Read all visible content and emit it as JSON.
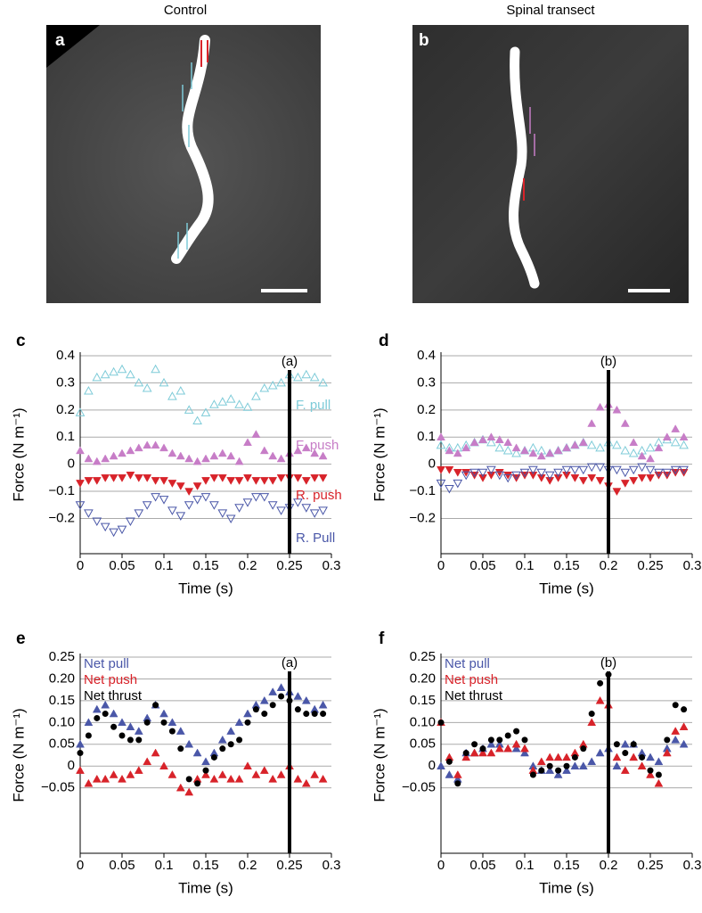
{
  "images": [
    {
      "title": "Control",
      "label": "a"
    },
    {
      "title": "Spinal transect",
      "label": "b"
    }
  ],
  "chart_data": [
    {
      "type": "scatter",
      "label": "c",
      "xlabel": "Time (s)",
      "ylabel": "Force (N m⁻¹)",
      "xlim": [
        0,
        0.3
      ],
      "ylim": [
        -0.33,
        0.4
      ],
      "xticks": [
        0,
        0.05,
        0.1,
        0.15,
        0.2,
        0.25,
        0.3
      ],
      "yticks": [
        0.4,
        0.3,
        0.2,
        0.1,
        0,
        {
          "value": -0.1,
          "label": "−0.1"
        },
        {
          "value": -0.2,
          "label": "−0.2"
        }
      ],
      "grid": true,
      "marker_line": {
        "x": 0.25,
        "label": "(a)"
      },
      "x": [
        0,
        0.01,
        0.02,
        0.03,
        0.04,
        0.05,
        0.06,
        0.07,
        0.08,
        0.09,
        0.1,
        0.11,
        0.12,
        0.13,
        0.14,
        0.15,
        0.16,
        0.17,
        0.18,
        0.19,
        0.2,
        0.21,
        0.22,
        0.23,
        0.24,
        0.25,
        0.26,
        0.27,
        0.28,
        0.29
      ],
      "series": [
        {
          "name": "F. pull",
          "color": "#7ecbd8",
          "marker": "triangle-open",
          "values": [
            0.19,
            0.27,
            0.32,
            0.33,
            0.34,
            0.35,
            0.33,
            0.3,
            0.28,
            0.35,
            0.3,
            0.25,
            0.27,
            0.2,
            0.16,
            0.19,
            0.22,
            0.23,
            0.24,
            0.22,
            0.21,
            0.25,
            0.28,
            0.29,
            0.3,
            0.33,
            0.32,
            0.33,
            0.32,
            0.3
          ]
        },
        {
          "name": "F. push",
          "color": "#c77dc7",
          "marker": "triangle",
          "values": [
            0.05,
            0.02,
            0.01,
            0.02,
            0.03,
            0.04,
            0.05,
            0.06,
            0.07,
            0.07,
            0.06,
            0.04,
            0.03,
            0.02,
            0.01,
            0.02,
            0.03,
            0.04,
            0.03,
            0.01,
            0.08,
            0.11,
            0.05,
            0.03,
            0.02,
            0.04,
            0.05,
            0.06,
            0.04,
            0.03
          ]
        },
        {
          "name": "R. push",
          "color": "#d8232a",
          "marker": "triangle-down",
          "values": [
            -0.07,
            -0.06,
            -0.06,
            -0.05,
            -0.05,
            -0.05,
            -0.04,
            -0.05,
            -0.05,
            -0.06,
            -0.06,
            -0.07,
            -0.08,
            -0.1,
            -0.08,
            -0.06,
            -0.05,
            -0.05,
            -0.06,
            -0.06,
            -0.05,
            -0.06,
            -0.06,
            -0.06,
            -0.05,
            -0.05,
            -0.05,
            -0.06,
            -0.05,
            -0.05
          ]
        },
        {
          "name": "R. Pull",
          "color": "#4a57a8",
          "marker": "triangle-down-open",
          "values": [
            -0.15,
            -0.18,
            -0.21,
            -0.23,
            -0.25,
            -0.24,
            -0.21,
            -0.18,
            -0.15,
            -0.12,
            -0.13,
            -0.17,
            -0.19,
            -0.15,
            -0.13,
            -0.12,
            -0.15,
            -0.18,
            -0.2,
            -0.16,
            -0.14,
            -0.12,
            -0.12,
            -0.15,
            -0.17,
            -0.16,
            -0.14,
            -0.16,
            -0.18,
            -0.17
          ]
        }
      ]
    },
    {
      "type": "scatter",
      "label": "d",
      "xlabel": "Time (s)",
      "ylabel": "Force (N m⁻¹)",
      "xlim": [
        0,
        0.3
      ],
      "ylim": [
        -0.33,
        0.4
      ],
      "xticks": [
        0,
        0.05,
        0.1,
        0.15,
        0.2,
        0.25,
        0.3
      ],
      "yticks": [
        0.4,
        0.3,
        0.2,
        0.1,
        0,
        {
          "value": -0.1,
          "label": "−0.1"
        },
        {
          "value": -0.2,
          "label": "−0.2"
        }
      ],
      "grid": true,
      "marker_line": {
        "x": 0.2,
        "label": "(b)"
      },
      "x": [
        0,
        0.01,
        0.02,
        0.03,
        0.04,
        0.05,
        0.06,
        0.07,
        0.08,
        0.09,
        0.1,
        0.11,
        0.12,
        0.13,
        0.14,
        0.15,
        0.16,
        0.17,
        0.18,
        0.19,
        0.2,
        0.21,
        0.22,
        0.23,
        0.24,
        0.25,
        0.26,
        0.27,
        0.28,
        0.29
      ],
      "series": [
        {
          "color": "#7ecbd8",
          "marker": "triangle-open",
          "values": [
            0.07,
            0.06,
            0.06,
            0.07,
            0.08,
            0.09,
            0.08,
            0.06,
            0.05,
            0.04,
            0.05,
            0.06,
            0.05,
            0.04,
            0.05,
            0.06,
            0.07,
            0.08,
            0.07,
            0.06,
            0.08,
            0.07,
            0.05,
            0.04,
            0.05,
            0.06,
            0.08,
            0.09,
            0.08,
            0.07
          ]
        },
        {
          "color": "#c77dc7",
          "marker": "triangle",
          "values": [
            0.1,
            0.05,
            0.04,
            0.06,
            0.08,
            0.09,
            0.1,
            0.09,
            0.08,
            0.06,
            0.05,
            0.04,
            0.03,
            0.04,
            0.05,
            0.06,
            0.07,
            0.08,
            0.15,
            0.21,
            0.22,
            0.2,
            0.15,
            0.08,
            0.03,
            0.02,
            0.06,
            0.1,
            0.13,
            0.1
          ]
        },
        {
          "color": "#d8232a",
          "marker": "triangle-down",
          "values": [
            -0.02,
            -0.02,
            -0.03,
            -0.03,
            -0.04,
            -0.05,
            -0.04,
            -0.03,
            -0.04,
            -0.05,
            -0.04,
            -0.04,
            -0.05,
            -0.06,
            -0.05,
            -0.04,
            -0.05,
            -0.06,
            -0.05,
            -0.06,
            -0.08,
            -0.1,
            -0.07,
            -0.06,
            -0.05,
            -0.05,
            -0.04,
            -0.04,
            -0.03,
            -0.03
          ]
        },
        {
          "color": "#4a57a8",
          "marker": "triangle-down-open",
          "values": [
            -0.07,
            -0.09,
            -0.07,
            -0.04,
            -0.03,
            -0.03,
            -0.02,
            -0.04,
            -0.05,
            -0.04,
            -0.03,
            -0.02,
            -0.03,
            -0.04,
            -0.03,
            -0.02,
            -0.02,
            -0.02,
            -0.01,
            -0.01,
            -0.02,
            -0.02,
            -0.03,
            -0.02,
            -0.01,
            -0.02,
            -0.03,
            -0.03,
            -0.02,
            -0.02
          ]
        }
      ]
    },
    {
      "type": "scatter",
      "label": "e",
      "xlabel": "Time (s)",
      "ylabel": "Force (N m⁻¹)",
      "xlim": [
        0,
        0.3
      ],
      "ylim": [
        -0.2,
        0.25
      ],
      "xticks": [
        0,
        0.05,
        0.1,
        0.15,
        0.2,
        0.25,
        0.3
      ],
      "yticks": [
        0.25,
        {
          "value": 0.2,
          "label": "0.20"
        },
        0.15,
        {
          "value": 0.1,
          "label": "0.10"
        },
        0.05,
        0,
        {
          "value": -0.05,
          "label": "−0.05"
        }
      ],
      "grid": true,
      "marker_line": {
        "x": 0.25,
        "label": "(a)"
      },
      "legend": "upper left",
      "x": [
        0,
        0.01,
        0.02,
        0.03,
        0.04,
        0.05,
        0.06,
        0.07,
        0.08,
        0.09,
        0.1,
        0.11,
        0.12,
        0.13,
        0.14,
        0.15,
        0.16,
        0.17,
        0.18,
        0.19,
        0.2,
        0.21,
        0.22,
        0.23,
        0.24,
        0.25,
        0.26,
        0.27,
        0.28,
        0.29
      ],
      "series": [
        {
          "name": "Net pull",
          "color": "#4a57a8",
          "marker": "triangle",
          "values": [
            0.05,
            0.1,
            0.13,
            0.14,
            0.12,
            0.1,
            0.09,
            0.08,
            0.11,
            0.14,
            0.12,
            0.1,
            0.08,
            0.05,
            0.03,
            0.01,
            0.03,
            0.06,
            0.08,
            0.1,
            0.12,
            0.14,
            0.15,
            0.17,
            0.18,
            0.17,
            0.16,
            0.15,
            0.13,
            0.14
          ]
        },
        {
          "name": "Net push",
          "color": "#d8232a",
          "marker": "triangle",
          "values": [
            -0.01,
            -0.04,
            -0.03,
            -0.03,
            -0.02,
            -0.03,
            -0.02,
            -0.01,
            0.01,
            0.03,
            0.0,
            -0.02,
            -0.05,
            -0.06,
            -0.03,
            -0.02,
            -0.03,
            -0.02,
            -0.03,
            -0.03,
            0.0,
            -0.02,
            -0.01,
            -0.03,
            -0.02,
            0.0,
            -0.03,
            -0.04,
            -0.02,
            -0.03
          ]
        },
        {
          "name": "Net thrust",
          "color": "#000000",
          "marker": "circle",
          "values": [
            0.03,
            0.07,
            0.11,
            0.12,
            0.09,
            0.07,
            0.06,
            0.06,
            0.1,
            0.14,
            0.1,
            0.08,
            0.04,
            -0.03,
            -0.04,
            -0.01,
            0.02,
            0.04,
            0.05,
            0.06,
            0.1,
            0.13,
            0.12,
            0.14,
            0.16,
            0.15,
            0.13,
            0.12,
            0.12,
            0.12
          ]
        }
      ]
    },
    {
      "type": "scatter",
      "label": "f",
      "xlabel": "Time (s)",
      "ylabel": "Force (N m⁻¹)",
      "xlim": [
        0,
        0.3
      ],
      "ylim": [
        -0.2,
        0.25
      ],
      "xticks": [
        0,
        0.05,
        0.1,
        0.15,
        0.2,
        0.25,
        0.3
      ],
      "yticks": [
        0.25,
        {
          "value": 0.2,
          "label": "0.20"
        },
        0.15,
        {
          "value": 0.1,
          "label": "0.10"
        },
        0.05,
        0,
        {
          "value": -0.05,
          "label": "−0.05"
        }
      ],
      "grid": true,
      "marker_line": {
        "x": 0.2,
        "label": "(b)"
      },
      "legend": "upper left",
      "x": [
        0,
        0.01,
        0.02,
        0.03,
        0.04,
        0.05,
        0.06,
        0.07,
        0.08,
        0.09,
        0.1,
        0.11,
        0.12,
        0.13,
        0.14,
        0.15,
        0.16,
        0.17,
        0.18,
        0.19,
        0.2,
        0.21,
        0.22,
        0.23,
        0.24,
        0.25,
        0.26,
        0.27,
        0.28,
        0.29
      ],
      "series": [
        {
          "name": "Net pull",
          "color": "#4a57a8",
          "marker": "triangle",
          "values": [
            0.0,
            -0.02,
            -0.03,
            0.03,
            0.03,
            0.04,
            0.05,
            0.05,
            0.04,
            0.04,
            0.03,
            0.0,
            -0.01,
            -0.01,
            -0.02,
            -0.01,
            0.0,
            0.0,
            0.01,
            0.03,
            0.04,
            0.0,
            0.05,
            0.05,
            0.03,
            0.02,
            0.01,
            0.04,
            0.06,
            0.05
          ]
        },
        {
          "name": "Net push",
          "color": "#d8232a",
          "marker": "triangle",
          "values": [
            0.1,
            0.02,
            -0.02,
            0.02,
            0.03,
            0.03,
            0.03,
            0.04,
            0.04,
            0.05,
            0.04,
            -0.01,
            0.01,
            0.02,
            0.02,
            0.02,
            0.03,
            0.05,
            0.1,
            0.15,
            0.14,
            0.02,
            -0.01,
            0.02,
            0.0,
            -0.02,
            -0.04,
            0.03,
            0.08,
            0.09
          ]
        },
        {
          "name": "Net thrust",
          "color": "#000000",
          "marker": "circle",
          "values": [
            0.1,
            0.01,
            -0.04,
            0.03,
            0.05,
            0.04,
            0.06,
            0.06,
            0.07,
            0.08,
            0.06,
            -0.02,
            -0.01,
            0.0,
            -0.01,
            0.0,
            0.02,
            0.04,
            0.12,
            0.19,
            0.21,
            0.05,
            0.03,
            0.05,
            0.02,
            -0.01,
            -0.02,
            0.06,
            0.14,
            0.13
          ]
        }
      ]
    }
  ]
}
